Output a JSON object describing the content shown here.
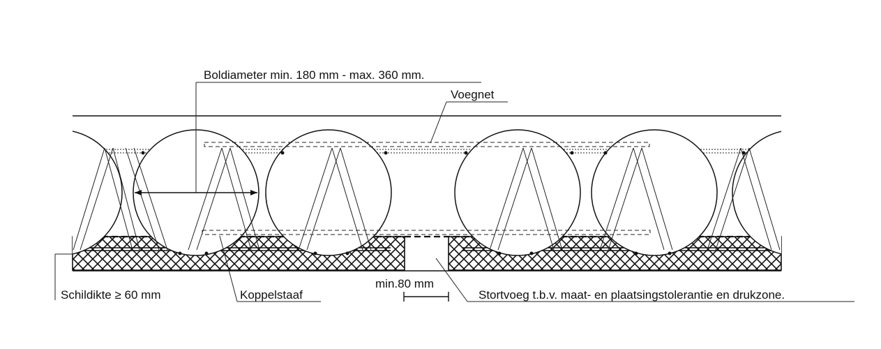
{
  "labels": {
    "ball_diameter": "Boldiameter min. 180 mm - max. 360 mm.",
    "joint_mesh": "Voegnet",
    "shell_thickness": "Schildikte ≥ 60 mm",
    "coupling_bar": "Koppelstaaf",
    "min_gap": "min.80 mm",
    "pour_joint": "Stortvoeg t.b.v. maat- en plaatsingstolerantie en drukzone."
  }
}
